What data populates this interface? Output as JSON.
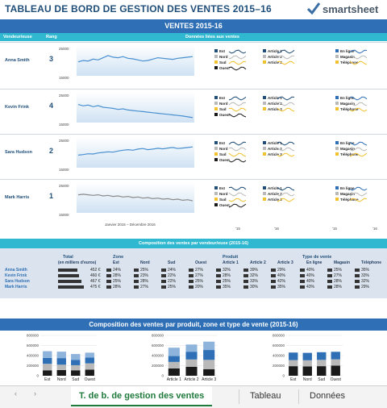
{
  "header": {
    "title": "TABLEAU DE BORD DE GESTION DES VENTES 2015–16",
    "logo_text": "smartsheet"
  },
  "main": {
    "section_title": "VENTES 2015-16",
    "col_rep": "Vendeur/euse",
    "col_rank": "Rang",
    "col_data": "Données liées aux ventes",
    "xaxis_caption": "Janvier 2015 – Décembre 2016",
    "y_top": "25000",
    "y_bottom": "15000",
    "mini_x_start": "'15",
    "mini_x_end": "'16"
  },
  "reps": [
    {
      "name": "Anna Smith",
      "rank": "3"
    },
    {
      "name": "Kevin Frink",
      "rank": "4"
    },
    {
      "name": "Sara Hudson",
      "rank": "2"
    },
    {
      "name": "Mark Harris",
      "rank": "1"
    }
  ],
  "legends": {
    "zones": [
      "Est",
      "Nord",
      "Sud",
      "Ouest"
    ],
    "articles": [
      "Article 1",
      "Article 2",
      "Article 3"
    ],
    "channels": [
      "En ligne",
      "Magasin",
      "Téléphone"
    ]
  },
  "composition": {
    "title": "Composition des ventes par vendeur/euse (2015-16)",
    "groups": {
      "total": "Total",
      "zone": "Zone",
      "product": "Produit",
      "sale_type": "Type de vente"
    },
    "total_sub": "(en milliers d'euros)",
    "columns": [
      "Est",
      "Nord",
      "Sud",
      "Ouest",
      "Article 1",
      "Article 2",
      "Article 3",
      "En ligne",
      "Magasin",
      "Téléphone"
    ],
    "rows": [
      {
        "name": "Anna Smith",
        "total": "452 €",
        "values": [
          "24%",
          "25%",
          "24%",
          "27%",
          "32%",
          "39%",
          "29%",
          "40%",
          "25%",
          "35%"
        ]
      },
      {
        "name": "Kevin Frink",
        "total": "460 €",
        "values": [
          "28%",
          "23%",
          "22%",
          "27%",
          "28%",
          "32%",
          "40%",
          "40%",
          "27%",
          "33%"
        ]
      },
      {
        "name": "Sara Hudson",
        "total": "467 €",
        "values": [
          "25%",
          "28%",
          "22%",
          "25%",
          "25%",
          "33%",
          "42%",
          "40%",
          "28%",
          "32%"
        ]
      },
      {
        "name": "Mark Harris",
        "total": "475 €",
        "values": [
          "28%",
          "27%",
          "25%",
          "20%",
          "35%",
          "30%",
          "35%",
          "43%",
          "28%",
          "29%"
        ]
      }
    ]
  },
  "bottom": {
    "title": "Composition des ventes par produit, zone et type de vente (2015-16)",
    "yticks": [
      "800000",
      "600000",
      "400000",
      "200000",
      "0"
    ]
  },
  "tabs": {
    "prev": "‹",
    "next": "›",
    "items": [
      "T. de b. de gestion des ventes",
      "Tableau",
      "Données"
    ]
  },
  "colors": {
    "blue": "#2e6fb5",
    "cyan": "#2fb8cf",
    "yellow": "#f2c12e",
    "gray": "#b9b9b9",
    "black": "#1a1a1a",
    "navy": "#1f4e79"
  },
  "chart_data": [
    {
      "type": "line",
      "title": "",
      "series": [
        {
          "name": "Anna Smith",
          "values": [
            19500,
            20000,
            19800,
            20500,
            20200,
            21000,
            21800,
            21200,
            21000,
            21400,
            20800,
            20600,
            20200,
            19800,
            20000,
            20500,
            21000,
            20800,
            20600,
            20400,
            20800,
            21000,
            21200,
            21400
          ]
        },
        {
          "name": "Kevin Frink",
          "values": [
            21000,
            20500,
            20800,
            20200,
            20600,
            20000,
            19800,
            19600,
            19200,
            19400,
            19000,
            18800,
            18600,
            18400,
            18200,
            18000,
            17800,
            17600,
            17400,
            17200,
            17000,
            16800,
            16500,
            16200
          ]
        },
        {
          "name": "Sara Hudson",
          "values": [
            19000,
            19200,
            19500,
            19400,
            19800,
            20000,
            20200,
            20100,
            20500,
            20800,
            21000,
            20800,
            21200,
            21400,
            21000,
            21200,
            21500,
            21300,
            21600,
            21800,
            21400,
            21600,
            21800,
            22000
          ]
        },
        {
          "name": "Mark Harris",
          "values": [
            21000,
            21200,
            21000,
            20800,
            21000,
            20600,
            20800,
            20400,
            20600,
            20200,
            20400,
            20000,
            20200,
            19800,
            20000,
            19600,
            19800,
            19400,
            19600,
            19200,
            19400,
            19000,
            19200,
            18800
          ]
        }
      ],
      "ylim": [
        15000,
        25000
      ]
    },
    {
      "type": "bar",
      "title": "",
      "categories": [
        "Est",
        "Nord",
        "Sud",
        "Ouest"
      ],
      "series": [
        {
          "name": "Anna Smith",
          "values": [
            108000,
            113000,
            108000,
            122000
          ]
        },
        {
          "name": "Kevin Frink",
          "values": [
            129000,
            106000,
            101000,
            124000
          ]
        },
        {
          "name": "Sara Hudson",
          "values": [
            117000,
            131000,
            103000,
            117000
          ]
        },
        {
          "name": "Mark Harris",
          "values": [
            133000,
            128000,
            119000,
            95000
          ]
        }
      ],
      "ylim": [
        0,
        800000
      ]
    },
    {
      "type": "bar",
      "title": "",
      "categories": [
        "Article 1",
        "Article 2",
        "Article 3"
      ],
      "series": [
        {
          "name": "Anna Smith",
          "values": [
            145000,
            176000,
            131000
          ]
        },
        {
          "name": "Kevin Frink",
          "values": [
            129000,
            147000,
            184000
          ]
        },
        {
          "name": "Sara Hudson",
          "values": [
            117000,
            154000,
            196000
          ]
        },
        {
          "name": "Mark Harris",
          "values": [
            166000,
            143000,
            166000
          ]
        }
      ],
      "ylim": [
        0,
        800000
      ]
    },
    {
      "type": "bar",
      "title": "",
      "categories": [
        "Est",
        "Nord",
        "Sud",
        "Ouest"
      ],
      "series": [
        {
          "name": "En ligne",
          "values": [
            190000,
            185000,
            190000,
            200000
          ]
        },
        {
          "name": "Magasin",
          "values": [
            120000,
            122000,
            125000,
            126000
          ]
        },
        {
          "name": "Téléphone",
          "values": [
            150000,
            147000,
            152000,
            149000
          ]
        }
      ],
      "ylim": [
        0,
        800000
      ]
    }
  ]
}
